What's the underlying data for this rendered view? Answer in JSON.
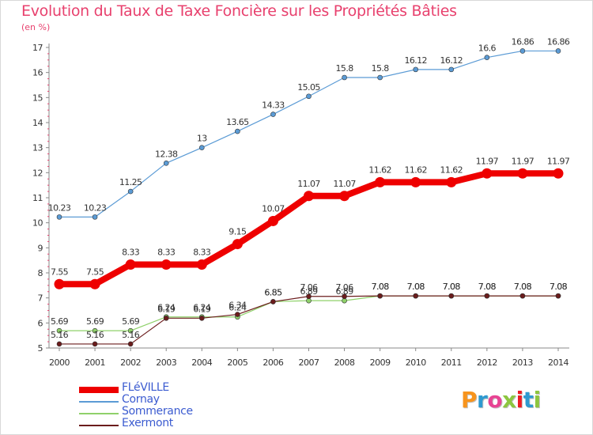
{
  "header": {
    "title": "Evolution du Taux de Taxe Foncière sur les Propriétés Bâties",
    "subtitle": "(en %)"
  },
  "logo": {
    "text": "Proxiti",
    "colors": [
      "#f7941d",
      "#2e9ad0",
      "#e84393",
      "#8dc63f",
      "#ed1c24",
      "#2e9ad0",
      "#8dc63f"
    ]
  },
  "chart_data": {
    "type": "line",
    "x": [
      "2000",
      "2001",
      "2002",
      "2003",
      "2004",
      "2005",
      "2006",
      "2007",
      "2008",
      "2009",
      "2010",
      "2011",
      "2012",
      "2013",
      "2014"
    ],
    "ylim": [
      5,
      17
    ],
    "yticks": [
      "5",
      "6",
      "7",
      "8",
      "9",
      "10",
      "11",
      "12",
      "13",
      "14",
      "15",
      "16",
      "17"
    ],
    "grid": false,
    "legend_position": "bottom-left",
    "series": [
      {
        "name": "Cornay",
        "color": "#5b9bd5",
        "values": [
          10.23,
          10.23,
          11.25,
          12.38,
          13,
          13.65,
          14.33,
          15.05,
          15.8,
          15.8,
          16.12,
          16.12,
          16.6,
          16.86,
          16.86
        ],
        "labels": [
          "10.23",
          "10.23",
          "11.25",
          "12.38",
          "13",
          "13.65",
          "14.33",
          "15.05",
          "15.8",
          "15.8",
          "16.12",
          "16.12",
          "16.6",
          "16.86",
          "16.86"
        ]
      },
      {
        "name": "Sommerance",
        "color": "#8fd16a",
        "values": [
          5.69,
          5.69,
          5.69,
          6.24,
          6.24,
          6.24,
          6.85,
          6.89,
          6.89,
          7.08,
          7.08,
          7.08,
          7.08,
          7.08,
          7.08
        ],
        "labels": [
          "5.69",
          "5.69",
          "5.69",
          "6.24",
          "6.24",
          "6.24",
          "6.85",
          "6.89",
          "6.89",
          "7.08",
          "7.08",
          "7.08",
          "7.08",
          "7.08",
          "7.08"
        ]
      },
      {
        "name": "Exermont",
        "color": "#6b1c1c",
        "values": [
          5.16,
          5.16,
          5.16,
          6.19,
          6.19,
          6.34,
          6.85,
          7.06,
          7.06,
          7.08,
          7.08,
          7.08,
          7.08,
          7.08,
          7.08
        ],
        "labels": [
          "5.16",
          "5.16",
          "5.16",
          "6.19",
          "6.19",
          "6.34",
          "6.85",
          "7.06",
          "7.06",
          "7.08",
          "7.08",
          "7.08",
          "7.08",
          "7.08",
          "7.08"
        ]
      },
      {
        "name": "FLéVILLE",
        "color": "#ee0000",
        "values": [
          7.55,
          7.55,
          8.33,
          8.33,
          8.33,
          9.15,
          10.07,
          11.07,
          11.07,
          11.62,
          11.62,
          11.62,
          11.97,
          11.97,
          11.97
        ],
        "labels": [
          "7.55",
          "7.55",
          "8.33",
          "8.33",
          "8.33",
          "9.15",
          "10.07",
          "11.07",
          "11.07",
          "11.62",
          "11.62",
          "11.62",
          "11.97",
          "11.97",
          "11.97"
        ]
      }
    ],
    "legend": [
      {
        "name": "FLéVILLE",
        "color": "#ee0000"
      },
      {
        "name": "Cornay",
        "color": "#5b9bd5"
      },
      {
        "name": "Sommerance",
        "color": "#8fd16a"
      },
      {
        "name": "Exermont",
        "color": "#6b1c1c"
      }
    ]
  }
}
